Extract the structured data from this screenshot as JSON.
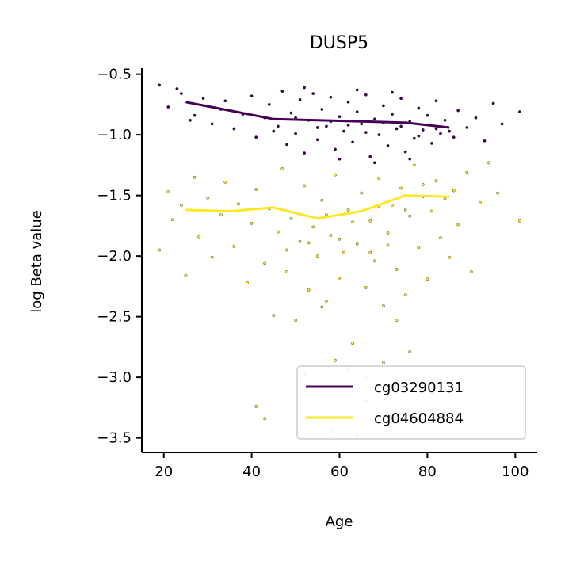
{
  "chart_data": {
    "type": "scatter",
    "title": "DUSP5",
    "xlabel": "Age",
    "ylabel": "log Beta value",
    "xlim": [
      15,
      105
    ],
    "ylim": [
      -3.62,
      -0.45
    ],
    "xticks": [
      20,
      40,
      60,
      80,
      100
    ],
    "xtick_labels": [
      "20",
      "40",
      "60",
      "80",
      "100"
    ],
    "yticks": [
      -0.5,
      -1.0,
      -1.5,
      -2.0,
      -2.5,
      -3.0,
      -3.5
    ],
    "ytick_labels": [
      "−0.5",
      "−1.0",
      "−1.5",
      "−2.0",
      "−2.5",
      "−3.0",
      "−3.5"
    ],
    "grid": false,
    "legend_position": "lower-right",
    "series": [
      {
        "name": "cg03290131",
        "color": "#440154",
        "trend": {
          "x": [
            25,
            35,
            45,
            55,
            65,
            75,
            85
          ],
          "y": [
            -0.73,
            -0.8,
            -0.87,
            -0.88,
            -0.89,
            -0.9,
            -0.94
          ]
        },
        "points": [
          [
            19,
            -0.59
          ],
          [
            21,
            -0.77
          ],
          [
            23,
            -0.62
          ],
          [
            24,
            -0.66
          ],
          [
            26,
            -0.88
          ],
          [
            27,
            -0.84
          ],
          [
            29,
            -0.7
          ],
          [
            31,
            -0.91
          ],
          [
            33,
            -0.79
          ],
          [
            34,
            -0.72
          ],
          [
            36,
            -0.95
          ],
          [
            38,
            -0.83
          ],
          [
            40,
            -0.68
          ],
          [
            41,
            -1.02
          ],
          [
            43,
            -0.86
          ],
          [
            44,
            -0.75
          ],
          [
            46,
            -0.93
          ],
          [
            47,
            -0.64
          ],
          [
            48,
            -1.08
          ],
          [
            49,
            -0.82
          ],
          [
            50,
            -0.99
          ],
          [
            51,
            -0.71
          ],
          [
            52,
            -1.15
          ],
          [
            53,
            -0.88
          ],
          [
            54,
            -0.66
          ],
          [
            55,
            -1.04
          ],
          [
            56,
            -0.79
          ],
          [
            57,
            -0.93
          ],
          [
            58,
            -0.69
          ],
          [
            59,
            -1.12
          ],
          [
            60,
            -0.85
          ],
          [
            61,
            -0.97
          ],
          [
            62,
            -0.73
          ],
          [
            63,
            -1.06
          ],
          [
            64,
            -0.81
          ],
          [
            65,
            -0.91
          ],
          [
            66,
            -0.67
          ],
          [
            67,
            -1.18
          ],
          [
            68,
            -0.87
          ],
          [
            69,
            -1.0
          ],
          [
            70,
            -0.76
          ],
          [
            71,
            -1.09
          ],
          [
            72,
            -0.83
          ],
          [
            73,
            -0.95
          ],
          [
            74,
            -0.7
          ],
          [
            75,
            -1.14
          ],
          [
            76,
            -0.89
          ],
          [
            77,
            -1.03
          ],
          [
            78,
            -0.78
          ],
          [
            79,
            -0.96
          ],
          [
            80,
            -0.84
          ],
          [
            81,
            -1.07
          ],
          [
            82,
            -0.72
          ],
          [
            83,
            -0.99
          ],
          [
            84,
            -0.88
          ],
          [
            86,
            -1.02
          ],
          [
            87,
            -0.8
          ],
          [
            89,
            -0.94
          ],
          [
            91,
            -0.86
          ],
          [
            93,
            -1.05
          ],
          [
            95,
            -0.74
          ],
          [
            97,
            -0.91
          ],
          [
            101,
            -0.81
          ],
          [
            45,
            -0.97
          ],
          [
            50,
            -0.86
          ],
          [
            55,
            -0.94
          ],
          [
            58,
            -0.89
          ],
          [
            62,
            -0.92
          ],
          [
            66,
            -0.98
          ],
          [
            70,
            -0.9
          ],
          [
            74,
            -0.93
          ],
          [
            78,
            -1.01
          ],
          [
            82,
            -0.95
          ],
          [
            85,
            -0.97
          ],
          [
            60,
            -1.2
          ],
          [
            68,
            -1.23
          ],
          [
            76,
            -1.2
          ],
          [
            52,
            -0.61
          ],
          [
            64,
            -0.63
          ],
          [
            72,
            -0.65
          ]
        ]
      },
      {
        "name": "cg04604884",
        "color": "#fde725",
        "trend": {
          "x": [
            25,
            35,
            45,
            55,
            65,
            75,
            85
          ],
          "y": [
            -1.62,
            -1.63,
            -1.6,
            -1.69,
            -1.63,
            -1.5,
            -1.51
          ]
        },
        "points": [
          [
            19,
            -1.95
          ],
          [
            21,
            -1.47
          ],
          [
            22,
            -1.7
          ],
          [
            24,
            -1.58
          ],
          [
            25,
            -2.16
          ],
          [
            27,
            -1.35
          ],
          [
            28,
            -1.84
          ],
          [
            30,
            -1.52
          ],
          [
            31,
            -2.01
          ],
          [
            33,
            -1.66
          ],
          [
            34,
            -1.39
          ],
          [
            36,
            -1.92
          ],
          [
            37,
            -1.57
          ],
          [
            39,
            -2.22
          ],
          [
            40,
            -1.73
          ],
          [
            41,
            -1.45
          ],
          [
            43,
            -2.06
          ],
          [
            44,
            -1.61
          ],
          [
            45,
            -2.49
          ],
          [
            46,
            -1.8
          ],
          [
            47,
            -1.28
          ],
          [
            48,
            -2.13
          ],
          [
            49,
            -1.69
          ],
          [
            50,
            -2.53
          ],
          [
            51,
            -1.88
          ],
          [
            52,
            -1.42
          ],
          [
            53,
            -2.28
          ],
          [
            54,
            -1.76
          ],
          [
            55,
            -2.0
          ],
          [
            56,
            -1.54
          ],
          [
            57,
            -2.37
          ],
          [
            58,
            -1.83
          ],
          [
            59,
            -1.33
          ],
          [
            60,
            -2.18
          ],
          [
            61,
            -1.97
          ],
          [
            62,
            -1.62
          ],
          [
            63,
            -2.72
          ],
          [
            64,
            -1.9
          ],
          [
            65,
            -1.48
          ],
          [
            66,
            -2.26
          ],
          [
            67,
            -1.71
          ],
          [
            68,
            -2.04
          ],
          [
            69,
            -1.36
          ],
          [
            70,
            -2.41
          ],
          [
            71,
            -1.81
          ],
          [
            72,
            -1.58
          ],
          [
            73,
            -2.11
          ],
          [
            74,
            -1.44
          ],
          [
            75,
            -2.32
          ],
          [
            76,
            -1.67
          ],
          [
            77,
            -1.25
          ],
          [
            78,
            -1.93
          ],
          [
            79,
            -1.51
          ],
          [
            80,
            -2.19
          ],
          [
            81,
            -1.63
          ],
          [
            82,
            -1.38
          ],
          [
            83,
            -1.85
          ],
          [
            84,
            -1.53
          ],
          [
            85,
            -2.01
          ],
          [
            86,
            -1.46
          ],
          [
            87,
            -1.74
          ],
          [
            89,
            -1.31
          ],
          [
            90,
            -2.13
          ],
          [
            92,
            -1.56
          ],
          [
            94,
            -1.23
          ],
          [
            96,
            -1.48
          ],
          [
            101,
            -1.71
          ],
          [
            59,
            -2.86
          ],
          [
            62,
            -2.93
          ],
          [
            70,
            -2.88
          ],
          [
            76,
            -2.79
          ],
          [
            52,
            -2.97
          ],
          [
            66,
            -3.0
          ],
          [
            41,
            -3.24
          ],
          [
            43,
            -3.34
          ],
          [
            58,
            -3.45
          ],
          [
            64,
            -3.49
          ],
          [
            66,
            -3.2
          ],
          [
            56,
            -2.42
          ],
          [
            73,
            -2.53
          ],
          [
            48,
            -1.95
          ],
          [
            53,
            -1.89
          ],
          [
            60,
            -1.86
          ],
          [
            67,
            -1.97
          ],
          [
            71,
            -1.91
          ],
          [
            57,
            -1.66
          ],
          [
            63,
            -1.72
          ],
          [
            69,
            -1.59
          ],
          [
            75,
            -1.62
          ],
          [
            79,
            -1.41
          ]
        ]
      }
    ]
  }
}
